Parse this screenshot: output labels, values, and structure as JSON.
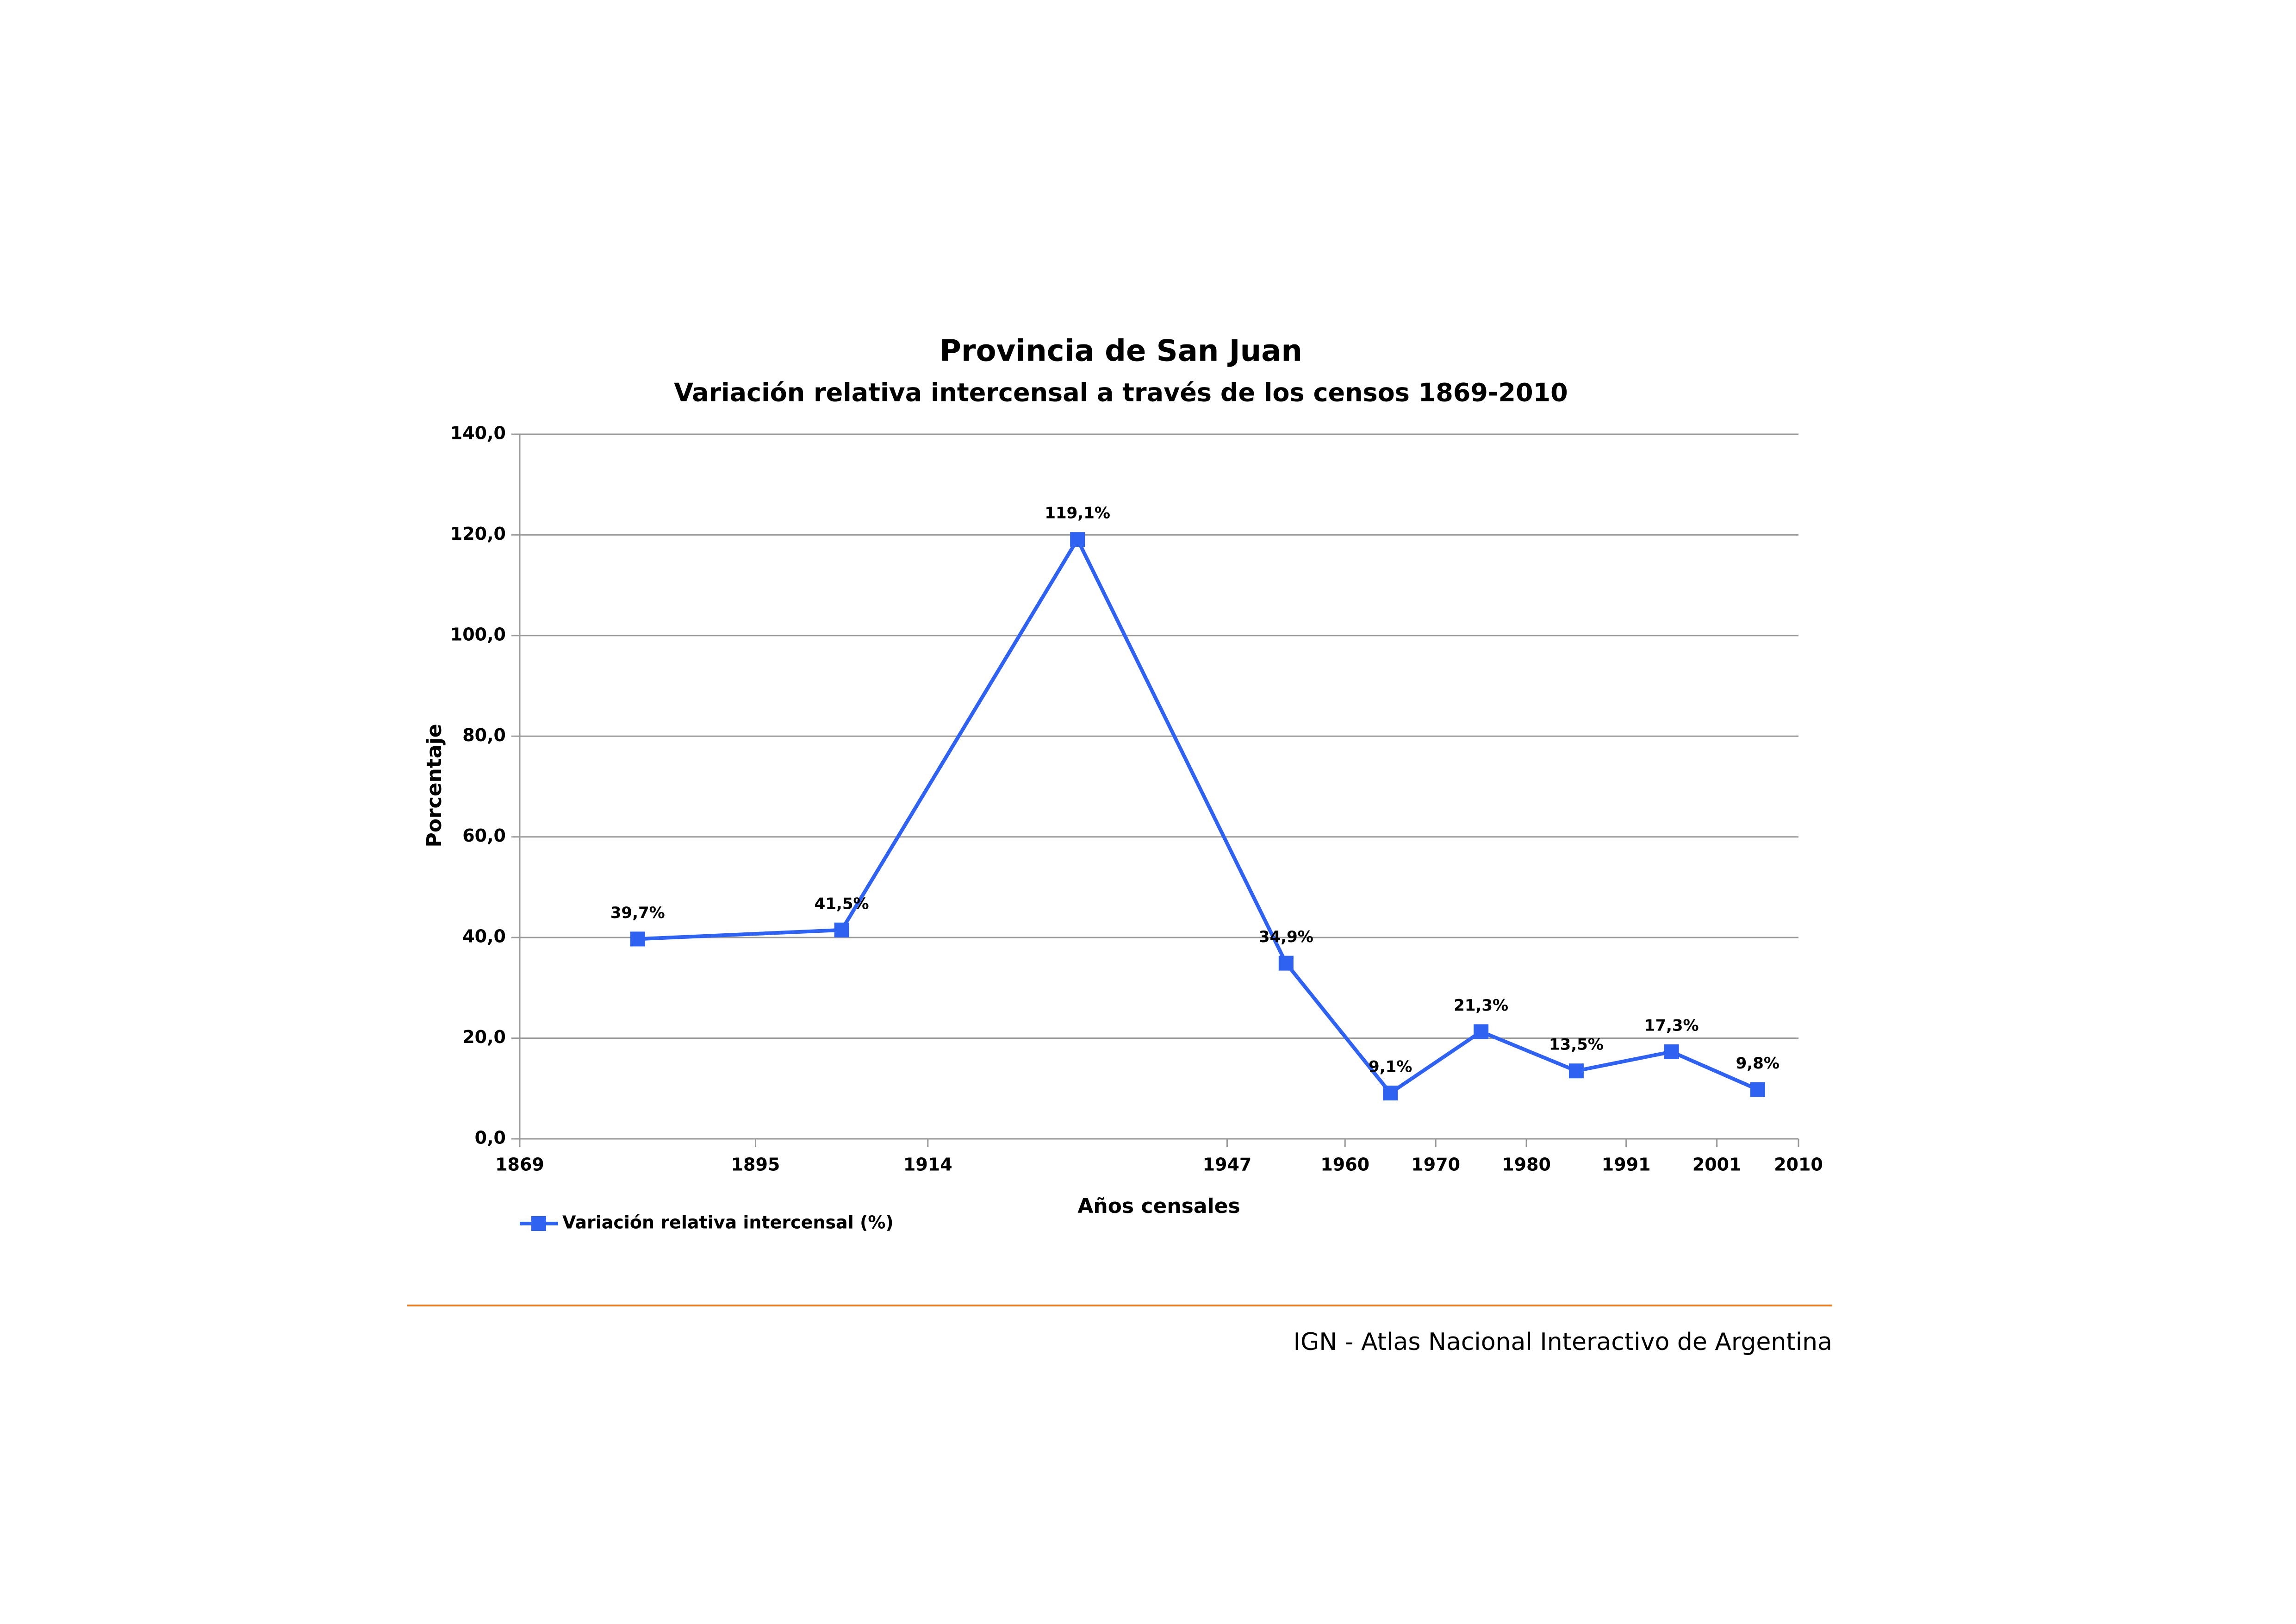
{
  "chart_data": {
    "type": "line",
    "title": "Provincia de San Juan",
    "subtitle": "Variación relativa intercensal a través de los censos 1869-2010",
    "x_label": "Años censales",
    "y_label": "Porcentaje",
    "xlim": [
      1869,
      2010
    ],
    "xticks": [
      1869,
      1895,
      1914,
      1947,
      1960,
      1970,
      1980,
      1991,
      2001,
      2010
    ],
    "ylim": [
      0,
      140
    ],
    "yticks": [
      {
        "value": 0,
        "label": "0,0"
      },
      {
        "value": 20,
        "label": "20,0"
      },
      {
        "value": 40,
        "label": "40,0"
      },
      {
        "value": 60,
        "label": "60,0"
      },
      {
        "value": 80,
        "label": "80,0"
      },
      {
        "value": 100,
        "label": "100,0"
      },
      {
        "value": 120,
        "label": "120,0"
      },
      {
        "value": 140,
        "label": "140,0"
      }
    ],
    "grid": true,
    "legend": "bottom-left",
    "series": [
      {
        "name": "Variación relativa intercensal (%)",
        "color": "#2f62f0",
        "values": [
          39.7,
          41.5,
          119.1,
          34.9,
          9.1,
          21.3,
          13.5,
          17.3,
          9.8
        ],
        "value_labels": [
          "39,7%",
          "41,5%",
          "119,1%",
          "34,9%",
          "9,1%",
          "21,3%",
          "13,5%",
          "17,3%",
          "9,8%"
        ]
      }
    ]
  },
  "footer": {
    "text": "IGN - Atlas Nacional Interactivo de Argentina",
    "color": "#e07b2a"
  }
}
